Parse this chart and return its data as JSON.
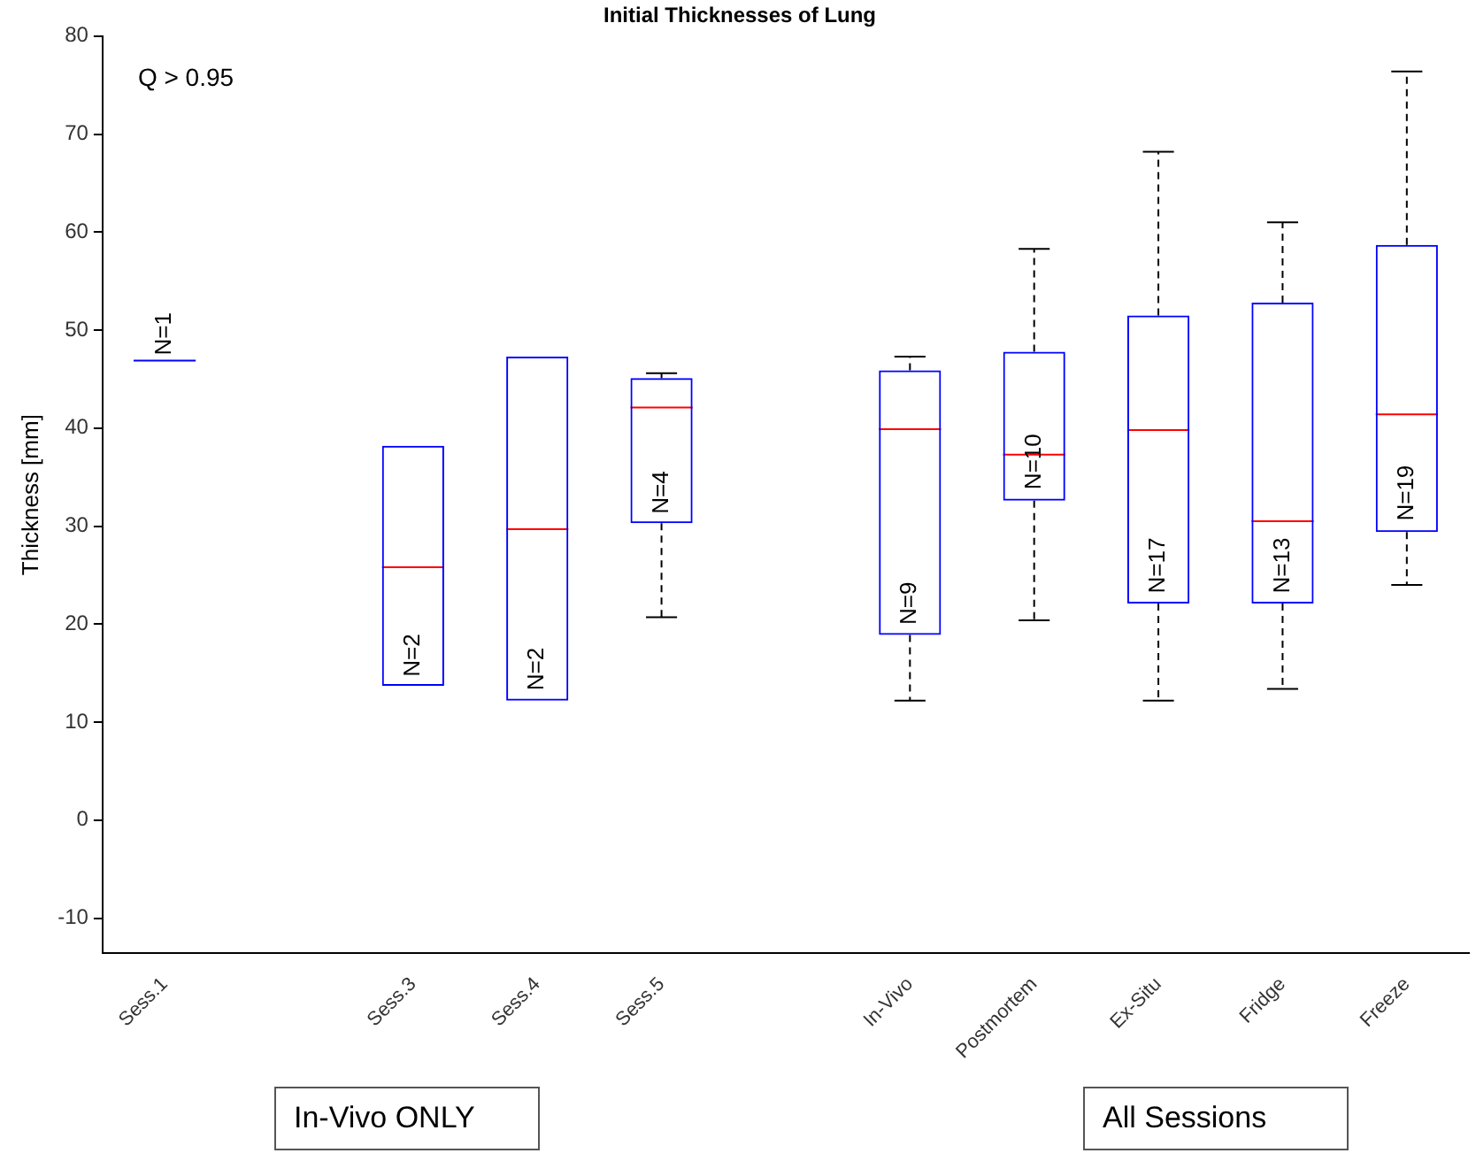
{
  "chart_data": {
    "type": "box",
    "title": "Initial Thicknesses of Lung",
    "ylabel": "Thickness [mm]",
    "categories": [
      "Sess.1",
      null,
      "Sess.3",
      "Sess.4",
      "Sess.5",
      null,
      "In-Vivo",
      "Postmortem",
      "Ex-Situ",
      "Fridge",
      "Freeze"
    ],
    "series": [
      {
        "color": "#0000ff",
        "boxes": [
          {
            "low": 46.9,
            "q1": 46.9,
            "median": 46.9,
            "q3": 46.9,
            "high": 46.9
          },
          null,
          {
            "low": 13.7,
            "q1": 13.7,
            "median": 25.8,
            "q3": 38.2,
            "high": 38.2
          },
          {
            "low": 12.2,
            "q1": 12.2,
            "median": 29.7,
            "q3": 47.3,
            "high": 47.3
          },
          {
            "low": 20.7,
            "q1": 30.3,
            "median": 42.1,
            "q3": 45.1,
            "high": 45.6
          },
          null,
          {
            "low": 12.2,
            "q1": 18.9,
            "median": 39.9,
            "q3": 45.9,
            "high": 47.3
          },
          {
            "low": 20.4,
            "q1": 32.6,
            "median": 37.3,
            "q3": 47.8,
            "high": 58.3
          },
          {
            "low": 12.2,
            "q1": 22.1,
            "median": 39.8,
            "q3": 51.5,
            "high": 68.2
          },
          {
            "low": 13.4,
            "q1": 22.1,
            "median": 30.5,
            "q3": 52.8,
            "high": 61.0
          },
          {
            "low": 24.0,
            "q1": 29.4,
            "median": 41.4,
            "q3": 58.7,
            "high": 76.4
          }
        ]
      }
    ],
    "ylim": [
      -13.6,
      80
    ],
    "yticks": [
      -10,
      0,
      10,
      20,
      30,
      40,
      50,
      60,
      70,
      80
    ],
    "annotations": [
      "Q > 0.95",
      "In-Vivo ONLY",
      "All Sessions",
      {
        "text": "N=1",
        "x": "Sess.1",
        "y": 46.9
      },
      {
        "text": "N=2",
        "x": "Sess.3",
        "y": 14.1
      },
      {
        "text": "N=2",
        "x": "Sess.4",
        "y": 12.7
      },
      {
        "text": "N=4",
        "x": "Sess.5",
        "y": 30.7
      },
      {
        "text": "N=9",
        "x": "In-Vivo",
        "y": 19.4
      },
      {
        "text": "N=10",
        "x": "Postmortem",
        "y": 33.2
      },
      {
        "text": "N=17",
        "x": "Ex-Situ",
        "y": 22.6
      },
      {
        "text": "N=13",
        "x": "Fridge",
        "y": 22.6
      },
      {
        "text": "N=19",
        "x": "Freeze",
        "y": 30.0
      }
    ]
  }
}
